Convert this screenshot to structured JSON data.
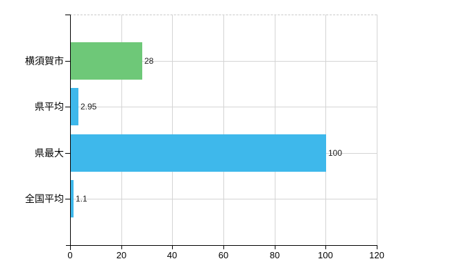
{
  "chart_data": {
    "type": "bar",
    "orientation": "horizontal",
    "title": "",
    "xlabel": "",
    "ylabel": "",
    "categories": [
      "横須賀市",
      "県平均",
      "県最大",
      "全国平均"
    ],
    "values": [
      28,
      2.95,
      100,
      1.1
    ],
    "value_labels": [
      "28",
      "2.95",
      "100",
      "1.1"
    ],
    "bar_colors": [
      "#6ec878",
      "#3eb8eb",
      "#3eb8eb",
      "#3eb8eb"
    ],
    "xlim": [
      0,
      120
    ],
    "x_tick_values": [
      0,
      20,
      40,
      60,
      80,
      100,
      120
    ],
    "x_tick_labels": [
      "0",
      "20",
      "40",
      "60",
      "80",
      "100",
      "120"
    ],
    "grid": true,
    "legend": false,
    "colors": {
      "background": "#ffffff",
      "axis": "#000000",
      "gridline": "#d4d4d4",
      "plot_top_border": "#c8c8c8",
      "category_label": "#000000",
      "value_label": "#1c1c1c",
      "highlight_bar": "#6ec878",
      "default_bar": "#3eb8eb"
    }
  }
}
